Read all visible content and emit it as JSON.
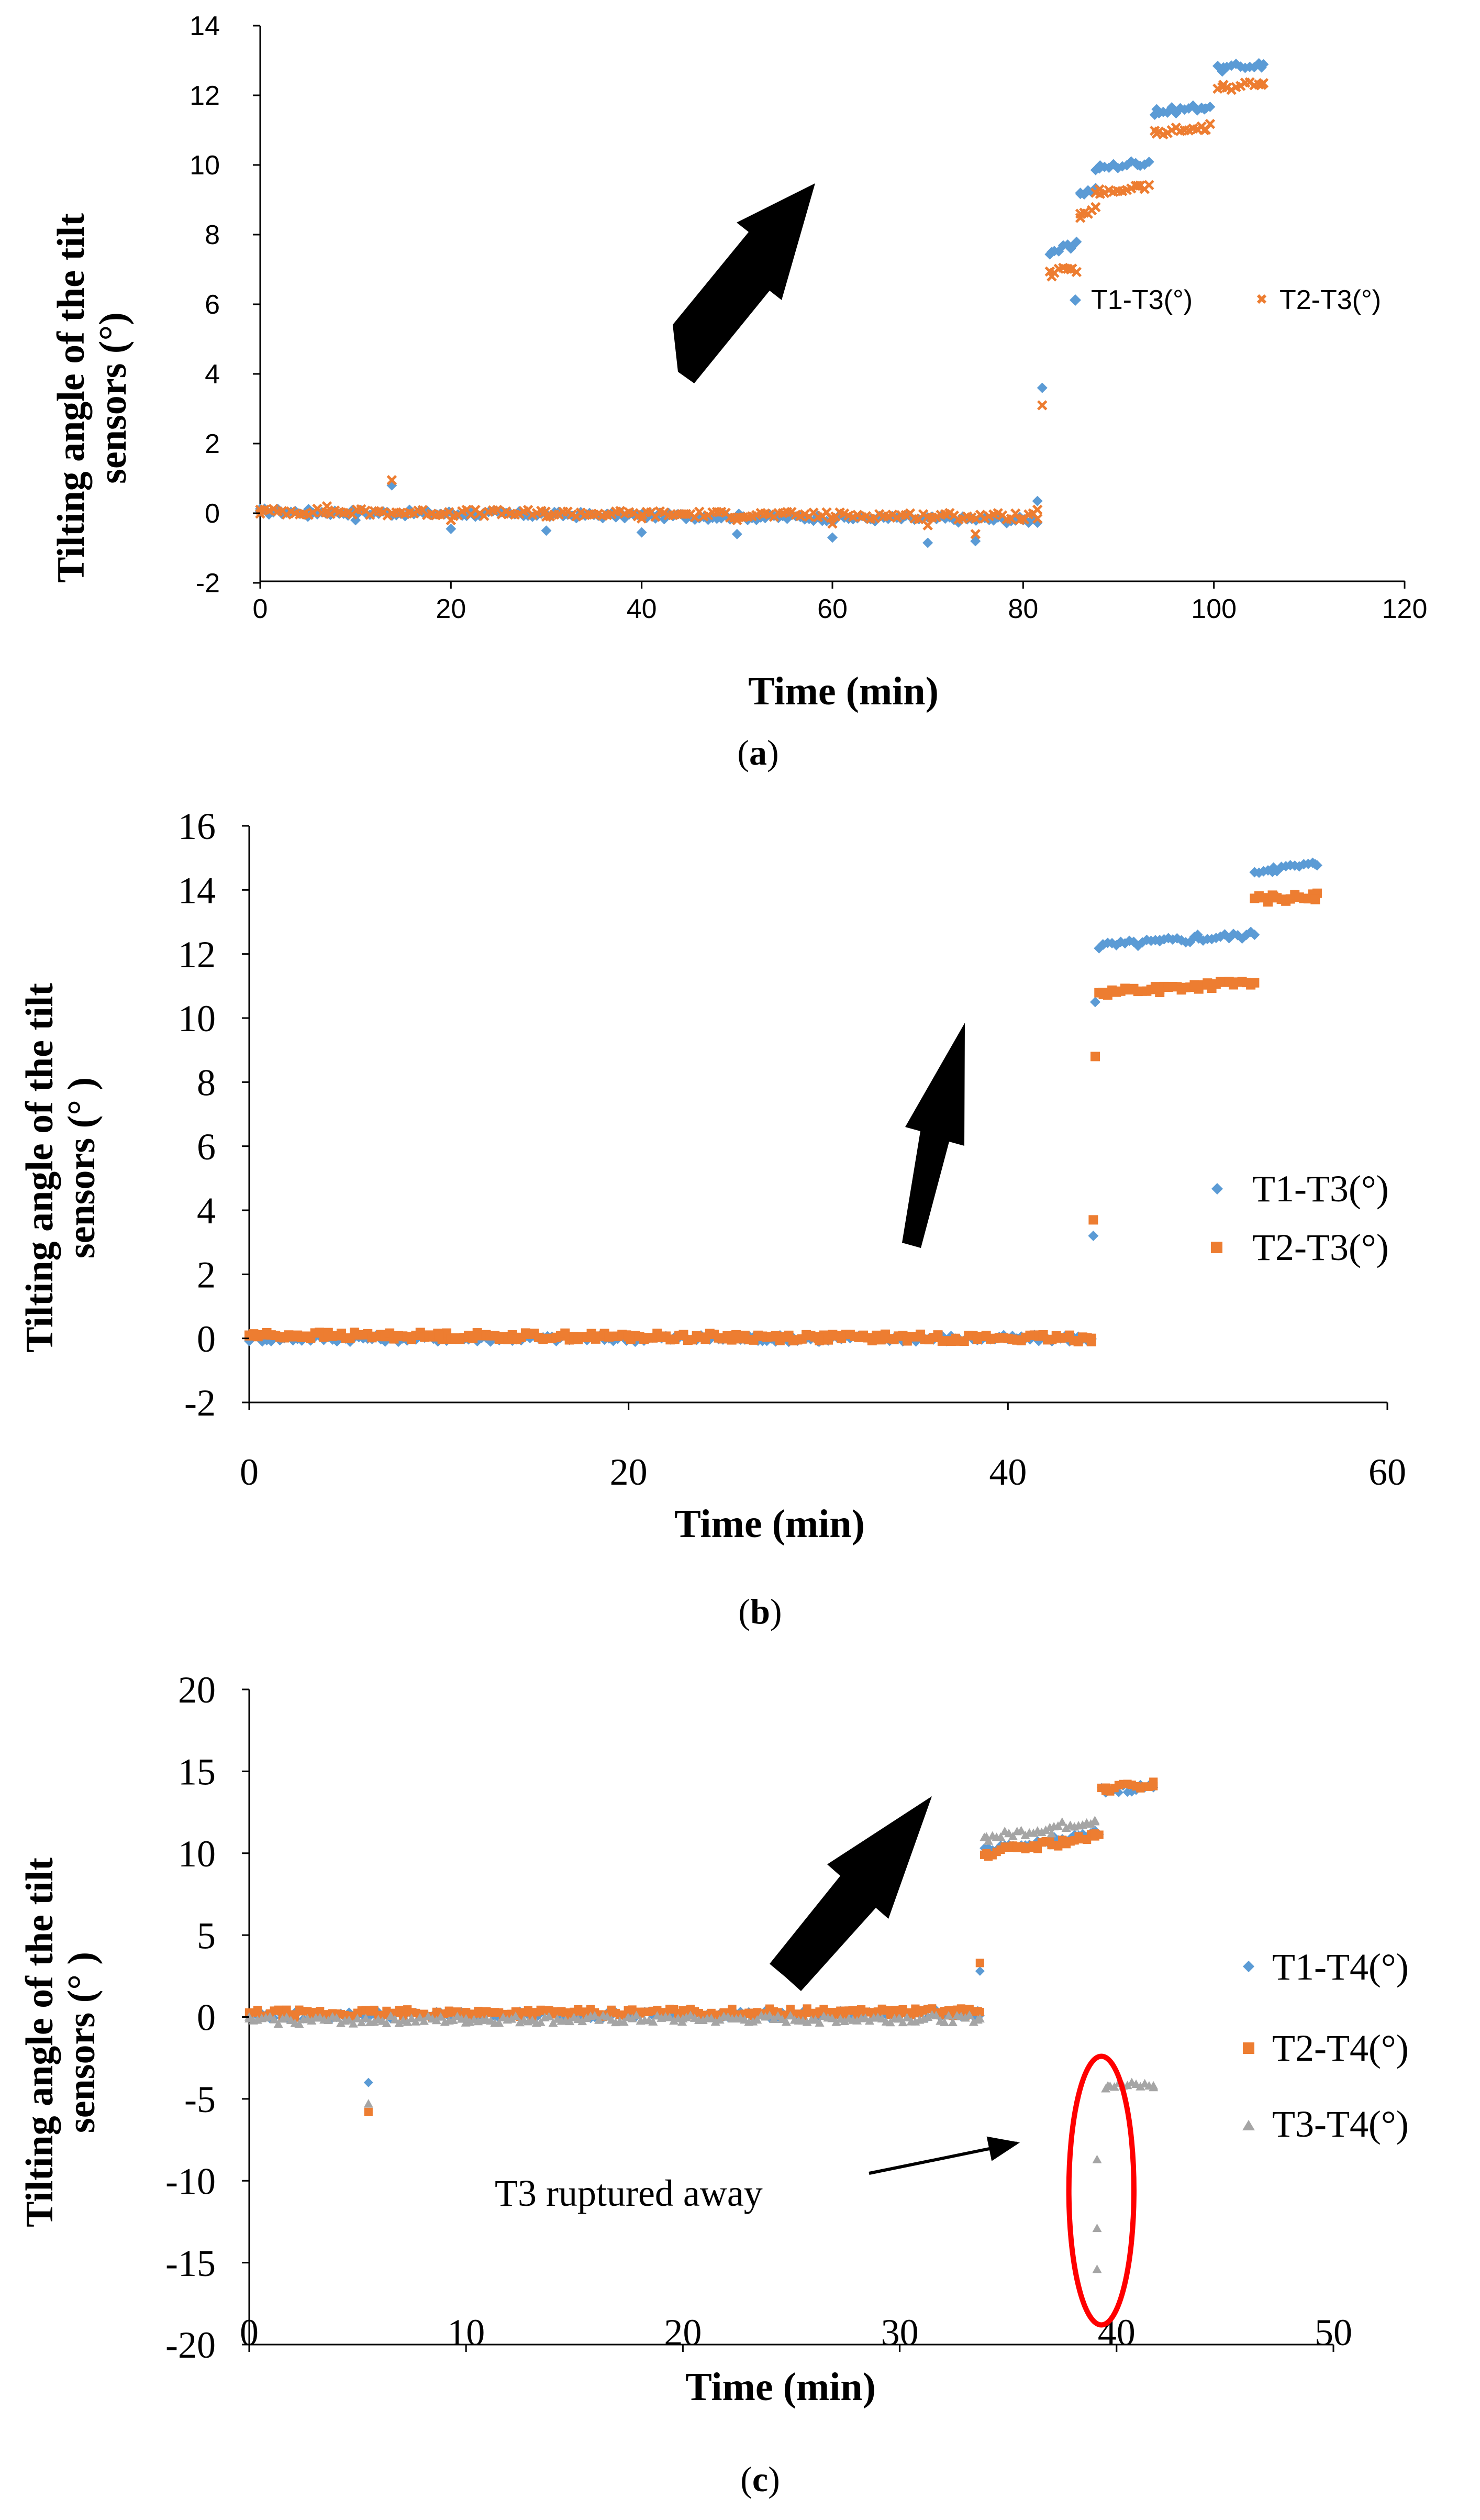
{
  "chart_data": [
    {
      "type": "scatter",
      "panel_label": "(a)",
      "panel_letter": "a",
      "xlabel": "Time (min)",
      "ylabel_line1": "Tilting angle of the tilt",
      "ylabel_line2": "sensors (°)",
      "xlim": [
        0,
        120
      ],
      "ylim": [
        -2,
        14
      ],
      "xticks": [
        "0",
        "20",
        "40",
        "60",
        "80",
        "100",
        "120"
      ],
      "yticks": [
        "-2",
        "0",
        "2",
        "4",
        "6",
        "8",
        "10",
        "12",
        "14"
      ],
      "legend_position": "center-right",
      "series": [
        {
          "name": "T1-T3(°)",
          "color": "#5B9BD5",
          "marker": "diamond",
          "points": [
            [
              0,
              0.05
            ],
            [
              5,
              -0.1
            ],
            [
              10,
              -0.2
            ],
            [
              13.8,
              0.8
            ],
            [
              20,
              -0.45
            ],
            [
              30,
              -0.5
            ],
            [
              40,
              -0.55
            ],
            [
              50,
              -0.6
            ],
            [
              60,
              -0.7
            ],
            [
              70,
              -0.85
            ],
            [
              75,
              -0.8
            ],
            [
              80,
              -0.2
            ],
            [
              81.5,
              0.35
            ],
            [
              82,
              3.6
            ],
            [
              83,
              7.5
            ],
            [
              85,
              7.6
            ],
            [
              86,
              9.2
            ],
            [
              88,
              9.9
            ],
            [
              92,
              10.0
            ],
            [
              94,
              11.6
            ],
            [
              99,
              11.6
            ],
            [
              101,
              12.8
            ],
            [
              105,
              12.8
            ]
          ],
          "segments": [
            [
              0,
              81.5,
              0.05,
              -0.2
            ],
            [
              82.8,
              85.6,
              7.5,
              7.7
            ],
            [
              86,
              87.6,
              9.2,
              9.3
            ],
            [
              87.6,
              93.2,
              9.9,
              10.1
            ],
            [
              93.8,
              99.6,
              11.5,
              11.7
            ],
            [
              100.4,
              105.2,
              12.75,
              12.9
            ]
          ]
        },
        {
          "name": "T2-T3(°)",
          "color": "#ED7D31",
          "marker": "x",
          "points": [
            [
              0,
              0.1
            ],
            [
              7,
              0.2
            ],
            [
              13.8,
              0.95
            ],
            [
              20,
              -0.2
            ],
            [
              30,
              -0.1
            ],
            [
              40,
              -0.15
            ],
            [
              50,
              -0.2
            ],
            [
              60,
              -0.3
            ],
            [
              70,
              -0.35
            ],
            [
              75,
              -0.6
            ],
            [
              80,
              -0.15
            ],
            [
              81.5,
              0.1
            ],
            [
              82,
              3.1
            ],
            [
              83,
              6.8
            ],
            [
              85,
              7.0
            ],
            [
              86,
              8.6
            ],
            [
              88,
              9.3
            ],
            [
              92,
              9.4
            ],
            [
              94,
              10.9
            ],
            [
              99,
              11.0
            ],
            [
              101,
              12.3
            ],
            [
              105,
              12.3
            ]
          ],
          "segments": [
            [
              0,
              81.5,
              0.05,
              -0.1
            ],
            [
              82.8,
              85.6,
              6.9,
              7.0
            ],
            [
              86,
              87.6,
              8.5,
              8.7
            ],
            [
              87.6,
              93.2,
              9.2,
              9.4
            ],
            [
              93.8,
              99.6,
              10.9,
              11.1
            ],
            [
              100.4,
              105.2,
              12.2,
              12.35
            ]
          ]
        }
      ],
      "annotations": [
        {
          "type": "arrow",
          "direction": "up-right",
          "from": [
            42.5,
            4.2
          ],
          "to": [
            55.3,
            9.6
          ]
        }
      ]
    },
    {
      "type": "scatter",
      "panel_label": "(b)",
      "panel_letter": "b",
      "xlabel": "Time (min)",
      "ylabel_line1": "Tilting angle of the tilt",
      "ylabel_line2": "sensors (° )",
      "xlim": [
        0,
        60
      ],
      "ylim": [
        -2,
        16
      ],
      "xticks": [
        "0",
        "20",
        "40",
        "60"
      ],
      "yticks": [
        "-2",
        "0",
        "2",
        "4",
        "6",
        "8",
        "10",
        "12",
        "14",
        "16"
      ],
      "legend_position": "center-right",
      "series": [
        {
          "name": "T1-T3(°)",
          "color": "#5B9BD5",
          "marker": "diamond",
          "points": [
            [
              0,
              0.0
            ],
            [
              10,
              0.0
            ],
            [
              20,
              0.0
            ],
            [
              30,
              -0.1
            ],
            [
              44.4,
              0.0
            ],
            [
              44.5,
              3.2
            ],
            [
              44.6,
              10.5
            ],
            [
              45,
              12.3
            ],
            [
              48,
              12.4
            ],
            [
              50,
              12.6
            ],
            [
              53,
              12.6
            ],
            [
              54,
              14.7
            ],
            [
              56.2,
              14.8
            ]
          ],
          "segments": [
            [
              0,
              44.4,
              0.0,
              0.0
            ],
            [
              44.8,
              52.8,
              12.25,
              12.6
            ],
            [
              53,
              56.3,
              14.6,
              14.8
            ]
          ]
        },
        {
          "name": "T2-T3(°)",
          "color": "#ED7D31",
          "marker": "square",
          "points": [
            [
              0,
              0.1
            ],
            [
              10,
              0.1
            ],
            [
              20,
              0.05
            ],
            [
              30,
              0.0
            ],
            [
              44.4,
              0.0
            ],
            [
              44.5,
              3.7
            ],
            [
              44.6,
              8.8
            ],
            [
              45,
              10.8
            ],
            [
              48,
              10.8
            ],
            [
              50,
              11.0
            ],
            [
              53,
              11.1
            ],
            [
              54,
              13.8
            ],
            [
              56.2,
              13.7
            ]
          ],
          "segments": [
            [
              0,
              44.4,
              0.1,
              0.0
            ],
            [
              44.8,
              52.8,
              10.8,
              11.1
            ],
            [
              53,
              56.3,
              13.7,
              13.8
            ]
          ]
        }
      ],
      "annotations": [
        {
          "type": "arrow",
          "direction": "up-right",
          "from": [
            34.2,
            3.6
          ],
          "to": [
            37.9,
            10.0
          ]
        }
      ]
    },
    {
      "type": "scatter",
      "panel_label": "(c)",
      "panel_letter": "c",
      "xlabel": "Time (min)",
      "ylabel_line1": "Tilting angle of the tilt",
      "ylabel_line2": "sensors (° )",
      "xlim": [
        0,
        50
      ],
      "ylim": [
        -20,
        20
      ],
      "xticks": [
        "0",
        "10",
        "20",
        "30",
        "40",
        "50"
      ],
      "yticks": [
        "-20",
        "-15",
        "-10",
        "-5",
        "0",
        "5",
        "10",
        "15",
        "20"
      ],
      "legend_position": "right",
      "series": [
        {
          "name": "T1-T4(°)",
          "color": "#5B9BD5",
          "marker": "diamond",
          "points": [
            [
              0,
              0.0
            ],
            [
              5.5,
              -4.0
            ],
            [
              10,
              0.2
            ],
            [
              20,
              0.2
            ],
            [
              30,
              0.2
            ],
            [
              33.7,
              0.1
            ],
            [
              33.7,
              2.8
            ],
            [
              34,
              10.2
            ],
            [
              37,
              10.6
            ],
            [
              39,
              11.4
            ],
            [
              39.5,
              13.8
            ],
            [
              41.7,
              14.0
            ]
          ],
          "segments": [
            [
              0,
              33.6,
              0.1,
              0.2
            ],
            [
              33.9,
              39.2,
              10.1,
              11.2
            ],
            [
              39.3,
              41.7,
              13.8,
              14.1
            ]
          ]
        },
        {
          "name": "T2-T4(°)",
          "color": "#ED7D31",
          "marker": "square",
          "points": [
            [
              0,
              0.2
            ],
            [
              5.5,
              -5.8
            ],
            [
              10,
              0.3
            ],
            [
              20,
              0.4
            ],
            [
              30,
              0.3
            ],
            [
              33.7,
              0.3
            ],
            [
              33.7,
              3.3
            ],
            [
              34,
              10.0
            ],
            [
              37,
              10.5
            ],
            [
              39,
              11.2
            ],
            [
              39.5,
              14.0
            ],
            [
              41.7,
              14.1
            ]
          ],
          "segments": [
            [
              0,
              33.6,
              0.2,
              0.3
            ],
            [
              33.9,
              39.2,
              10.0,
              11.0
            ],
            [
              39.3,
              41.7,
              13.9,
              14.2
            ]
          ]
        },
        {
          "name": "T3-T4(°)",
          "color": "#A5A5A5",
          "marker": "triangle",
          "points": [
            [
              0,
              -0.1
            ],
            [
              5.5,
              -5.3
            ],
            [
              10,
              -0.1
            ],
            [
              20,
              -0.1
            ],
            [
              30,
              -0.1
            ],
            [
              33.7,
              -0.1
            ],
            [
              34,
              11.0
            ],
            [
              37,
              11.2
            ],
            [
              39,
              12.0
            ],
            [
              39.1,
              -8.7
            ],
            [
              39.1,
              -12.9
            ],
            [
              39.1,
              -15.4
            ],
            [
              39.6,
              -4.2
            ],
            [
              41.7,
              -4.2
            ]
          ],
          "segments": [
            [
              0,
              33.6,
              -0.2,
              -0.1
            ],
            [
              33.9,
              39.0,
              10.9,
              12.0
            ],
            [
              39.5,
              41.7,
              -4.2,
              -4.2
            ]
          ]
        }
      ],
      "annotations": [
        {
          "type": "text_arrow",
          "text": "T3 ruptured away",
          "arrow_to": [
            35.4,
            -7.7
          ]
        },
        {
          "type": "arrow",
          "direction": "up-right",
          "from": [
            25.2,
            2.0
          ],
          "to": [
            31.2,
            14.7
          ]
        },
        {
          "type": "ellipse",
          "color": "#FF0000",
          "center": [
            39.3,
            -10.6
          ],
          "rx_data": 1.5,
          "ry_data": 8.2
        }
      ]
    }
  ]
}
